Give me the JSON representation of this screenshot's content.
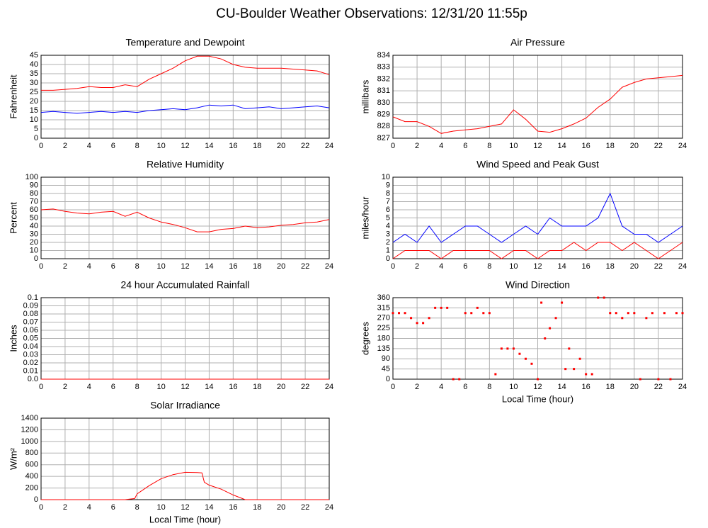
{
  "title": "CU-Boulder Weather Observations: 12/31/20 11:55p",
  "chart_data": [
    {
      "type": "line",
      "title": "Temperature and Dewpoint",
      "ylabel": "Fahrenheit",
      "x": [
        0,
        1,
        2,
        3,
        4,
        5,
        6,
        7,
        8,
        9,
        10,
        11,
        12,
        13,
        14,
        15,
        16,
        17,
        18,
        19,
        20,
        21,
        22,
        23,
        24
      ],
      "series": [
        {
          "color": "#ff0000",
          "values": [
            26,
            26,
            26.5,
            27,
            28,
            27.5,
            27.5,
            29,
            28,
            32,
            35,
            38,
            42,
            44.5,
            44.5,
            43,
            40,
            38.5,
            38,
            38,
            38,
            37.5,
            37,
            36.5,
            34.5
          ]
        },
        {
          "color": "#0000ff",
          "values": [
            14,
            14.5,
            14,
            13.5,
            14,
            14.5,
            14,
            14.5,
            14,
            15,
            15.5,
            16,
            15.5,
            16.5,
            18,
            17.5,
            18,
            16,
            16.5,
            17,
            16,
            16.5,
            17,
            17.5,
            16.5
          ]
        }
      ],
      "xlim": [
        0,
        24
      ],
      "xticks": [
        0,
        2,
        4,
        6,
        8,
        10,
        12,
        14,
        16,
        18,
        20,
        22,
        24
      ],
      "ylim": [
        0,
        45
      ],
      "yticks": [
        0,
        5,
        10,
        15,
        20,
        25,
        30,
        35,
        40,
        45
      ],
      "grid": true
    },
    {
      "type": "line",
      "title": "Air Pressure",
      "ylabel": "millibars",
      "x": [
        0,
        1,
        2,
        3,
        4,
        5,
        6,
        7,
        8,
        9,
        10,
        11,
        12,
        13,
        14,
        15,
        16,
        17,
        18,
        19,
        20,
        21,
        22,
        23,
        24
      ],
      "series": [
        {
          "color": "#ff0000",
          "values": [
            828.8,
            828.4,
            828.4,
            828,
            827.4,
            827.6,
            827.7,
            827.8,
            828,
            828.2,
            829.4,
            828.6,
            827.6,
            827.5,
            827.8,
            828.2,
            828.7,
            829.6,
            830.3,
            831.3,
            831.7,
            832,
            832.1,
            832.2,
            832.3
          ]
        }
      ],
      "xlim": [
        0,
        24
      ],
      "xticks": [
        0,
        2,
        4,
        6,
        8,
        10,
        12,
        14,
        16,
        18,
        20,
        22,
        24
      ],
      "ylim": [
        827,
        834
      ],
      "yticks": [
        827,
        828,
        829,
        830,
        831,
        832,
        833,
        834
      ],
      "grid": true
    },
    {
      "type": "line",
      "title": "Relative Humidity",
      "ylabel": "Percent",
      "x": [
        0,
        1,
        2,
        3,
        4,
        5,
        6,
        7,
        8,
        9,
        10,
        11,
        12,
        13,
        14,
        15,
        16,
        17,
        18,
        19,
        20,
        21,
        22,
        23,
        24
      ],
      "series": [
        {
          "color": "#ff0000",
          "values": [
            60,
            61,
            58,
            56,
            55,
            57,
            58,
            52,
            57,
            50,
            45,
            42,
            38,
            33,
            33,
            36,
            37,
            40,
            38,
            39,
            41,
            42,
            44,
            45,
            48
          ]
        }
      ],
      "xlim": [
        0,
        24
      ],
      "xticks": [
        0,
        2,
        4,
        6,
        8,
        10,
        12,
        14,
        16,
        18,
        20,
        22,
        24
      ],
      "ylim": [
        0,
        100
      ],
      "yticks": [
        0,
        10,
        20,
        30,
        40,
        50,
        60,
        70,
        80,
        90,
        100
      ],
      "grid": true
    },
    {
      "type": "line",
      "title": "Wind Speed and Peak Gust",
      "ylabel": "miles/hour",
      "x": [
        0,
        1,
        2,
        3,
        4,
        5,
        6,
        7,
        8,
        9,
        10,
        11,
        12,
        13,
        14,
        15,
        16,
        17,
        18,
        19,
        20,
        21,
        22,
        23,
        24
      ],
      "series": [
        {
          "color": "#0000ff",
          "values": [
            2,
            3,
            2,
            4,
            2,
            3,
            4,
            4,
            3,
            2,
            3,
            4,
            3,
            5,
            4,
            4,
            4,
            5,
            8,
            4,
            3,
            3,
            2,
            3,
            4
          ]
        },
        {
          "color": "#ff0000",
          "values": [
            0,
            1,
            1,
            1,
            0,
            1,
            1,
            1,
            1,
            0,
            1,
            1,
            0,
            1,
            1,
            2,
            1,
            2,
            2,
            1,
            2,
            1,
            0,
            1,
            2
          ]
        }
      ],
      "xlim": [
        0,
        24
      ],
      "xticks": [
        0,
        2,
        4,
        6,
        8,
        10,
        12,
        14,
        16,
        18,
        20,
        22,
        24
      ],
      "ylim": [
        0,
        10
      ],
      "yticks": [
        0,
        1,
        2,
        3,
        4,
        5,
        6,
        7,
        8,
        9,
        10
      ],
      "grid": true
    },
    {
      "type": "line",
      "title": "24 hour Accumulated Rainfall",
      "ylabel": "Inches",
      "x": [
        0,
        4,
        8,
        12,
        16,
        20,
        24
      ],
      "series": [
        {
          "color": "#ff0000",
          "values": [
            0,
            0,
            0,
            0,
            0,
            0,
            0
          ]
        }
      ],
      "xlim": [
        0,
        24
      ],
      "xticks": [
        0,
        2,
        4,
        6,
        8,
        10,
        12,
        14,
        16,
        18,
        20,
        22,
        24
      ],
      "ylim": [
        0,
        0.1
      ],
      "yticks": [
        {
          "value": 0,
          "label": "0.0"
        },
        0.01,
        0.02,
        0.03,
        0.04,
        0.05,
        0.06,
        0.07,
        0.08,
        0.09,
        0.1
      ],
      "grid": true
    },
    {
      "type": "scatter",
      "title": "Wind Direction",
      "ylabel": "degrees",
      "xlabel": "Local Time (hour)",
      "x": [
        0,
        0.5,
        1,
        1.5,
        2,
        2.5,
        3,
        3.5,
        4,
        4.5,
        5,
        5.5,
        6,
        6.5,
        7,
        7.5,
        8,
        8.5,
        9,
        9.5,
        10,
        10.5,
        11,
        11.5,
        12,
        12.3,
        12.6,
        13,
        13.5,
        14,
        14.3,
        14.6,
        15,
        15.5,
        16,
        16.5,
        17,
        17.5,
        18,
        18.5,
        19,
        19.5,
        20,
        20.5,
        21,
        21.5,
        22,
        22.5,
        23,
        23.5,
        24
      ],
      "series": [
        {
          "color": "#ff0000",
          "values": [
            292,
            292,
            292,
            270,
            248,
            248,
            270,
            315,
            315,
            315,
            0,
            0,
            292,
            292,
            315,
            292,
            292,
            22,
            135,
            135,
            135,
            112,
            90,
            68,
            0,
            338,
            180,
            225,
            270,
            338,
            45,
            135,
            45,
            90,
            22,
            22,
            360,
            360,
            292,
            292,
            270,
            292,
            292,
            0,
            270,
            292,
            0,
            292,
            0,
            292,
            292
          ]
        }
      ],
      "xlim": [
        0,
        24
      ],
      "xticks": [
        0,
        2,
        4,
        6,
        8,
        10,
        12,
        14,
        16,
        18,
        20,
        22,
        24
      ],
      "ylim": [
        0,
        360
      ],
      "yticks": [
        0,
        45,
        90,
        135,
        180,
        225,
        270,
        315,
        360
      ],
      "grid": true
    },
    {
      "type": "line",
      "title": "Solar Irradiance",
      "ylabel": "W/m²",
      "xlabel": "Local Time (hour)",
      "x": [
        0,
        7,
        7.8,
        8,
        9,
        10,
        11,
        12,
        13,
        13.4,
        13.6,
        14,
        15,
        16,
        17,
        24
      ],
      "series": [
        {
          "color": "#ff0000",
          "values": [
            0,
            0,
            20,
            100,
            240,
            360,
            430,
            470,
            465,
            460,
            300,
            250,
            180,
            80,
            0,
            0
          ]
        }
      ],
      "xlim": [
        0,
        24
      ],
      "xticks": [
        0,
        2,
        4,
        6,
        8,
        10,
        12,
        14,
        16,
        18,
        20,
        22,
        24
      ],
      "ylim": [
        0,
        1400
      ],
      "yticks": [
        0,
        200,
        400,
        600,
        800,
        1000,
        1200,
        1400
      ],
      "grid": true
    }
  ]
}
